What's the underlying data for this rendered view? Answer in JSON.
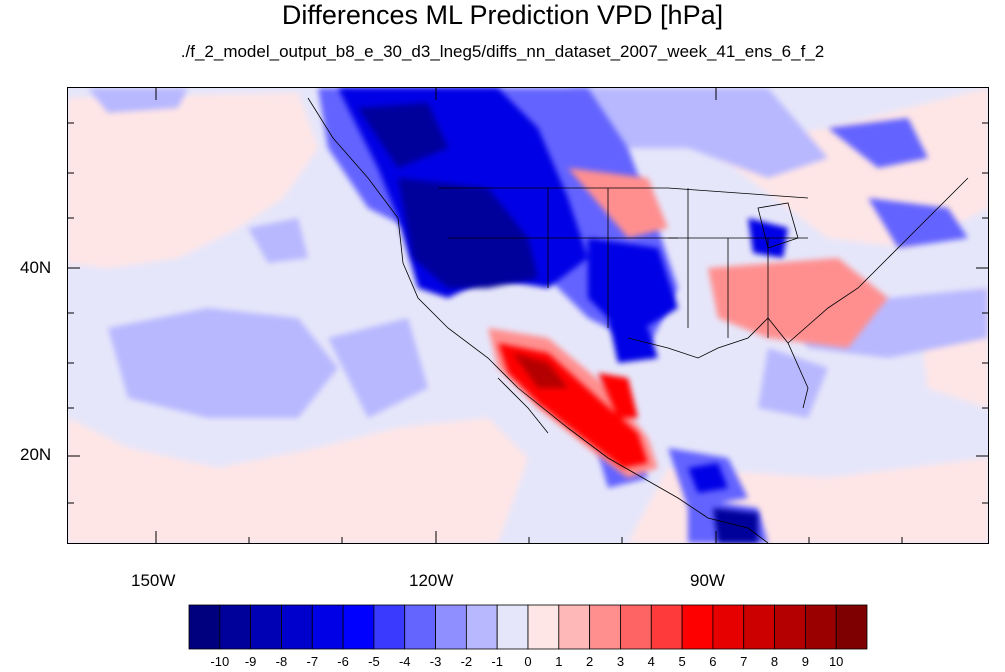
{
  "title": "Differences ML Prediction VPD [hPa]",
  "subtitle": "./f_2_model_output_b8_e_30_d3_lneg5/diffs_nn_dataset_2007_week_41_ens_6_f_2",
  "map": {
    "lat_labels": [
      "40N",
      "20N"
    ],
    "lon_labels": [
      "150W",
      "120W",
      "90W"
    ]
  },
  "colorbar": {
    "labels": [
      "-10",
      "-9",
      "-8",
      "-7",
      "-6",
      "-5",
      "-4",
      "-3",
      "-2",
      "-1",
      "0",
      "1",
      "2",
      "3",
      "4",
      "5",
      "6",
      "7",
      "8",
      "9",
      "10"
    ],
    "colors": [
      "#00007f",
      "#00009b",
      "#0000b4",
      "#0000cd",
      "#0000e6",
      "#0000ff",
      "#3a3aff",
      "#6464ff",
      "#8f8fff",
      "#b8b8ff",
      "#e6e6fa",
      "#ffe6e6",
      "#ffb8b8",
      "#ff8f8f",
      "#ff6464",
      "#ff3a3a",
      "#ff0000",
      "#e60000",
      "#cd0000",
      "#b40000",
      "#9b0000",
      "#7f0000"
    ]
  }
}
